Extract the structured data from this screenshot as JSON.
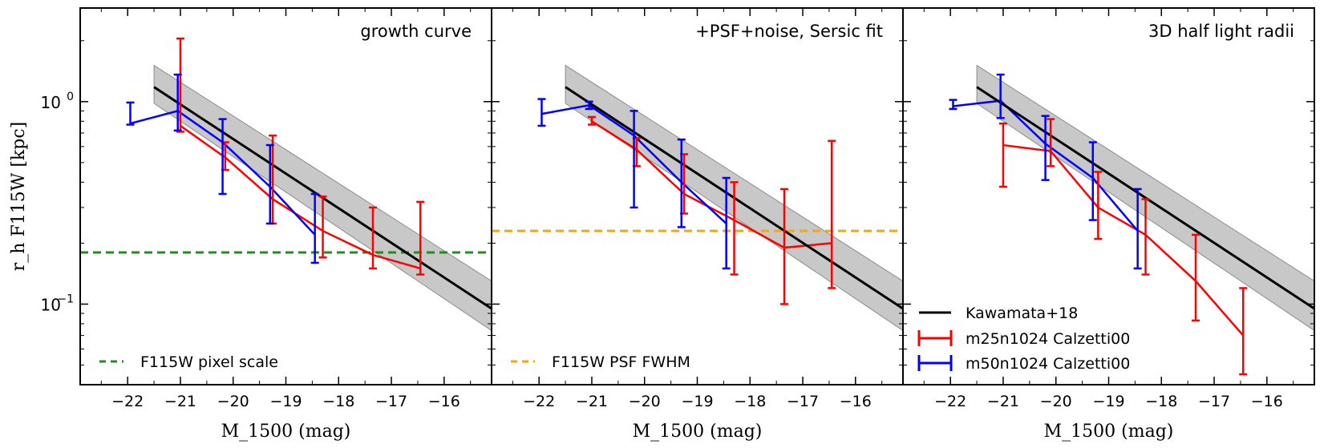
{
  "chart_data": [
    {
      "type": "line",
      "panel_title": "growth curve",
      "xlabel": "M_1500 (mag)",
      "ylabel": "r_h F115W [kpc]",
      "xlim": [
        -22.9,
        -15.1
      ],
      "ylim": [
        0.04,
        2.9
      ],
      "yscale": "log",
      "xticks": [
        -22,
        -21,
        -20,
        -19,
        -18,
        -17,
        -16
      ],
      "yticks": [
        {
          "value": 1.0,
          "label_base": "10",
          "label_exp": "0"
        },
        {
          "value": 0.1,
          "label_base": "10",
          "label_exp": "-1"
        }
      ],
      "kawamata": {
        "name": "Kawamata+18",
        "color": "#000000",
        "x": [
          -21.5,
          -15.1
        ],
        "y": [
          1.18,
          0.095
        ],
        "band_lower": [
          0.98,
          0.074
        ],
        "band_upper": [
          1.51,
          0.13
        ]
      },
      "series": [
        {
          "name": "m25n1024 Calzetti00",
          "color": "#ff0000",
          "x": [
            -21.0,
            -20.15,
            -19.25,
            -18.3,
            -17.35,
            -16.45
          ],
          "y": [
            0.76,
            0.53,
            0.33,
            0.23,
            0.175,
            0.15
          ],
          "err_low": [
            0.71,
            0.46,
            0.25,
            0.17,
            0.15,
            0.14
          ],
          "err_high": [
            2.05,
            0.63,
            0.68,
            0.34,
            0.3,
            0.32
          ]
        },
        {
          "name": "m50n1024 Calzetti00",
          "color": "#0000ff",
          "x": [
            -21.95,
            -21.05,
            -20.2,
            -19.3,
            -18.45
          ],
          "y": [
            0.78,
            0.9,
            0.63,
            0.38,
            0.22
          ],
          "err_low": [
            0.77,
            0.72,
            0.35,
            0.25,
            0.16
          ],
          "err_high": [
            0.99,
            1.36,
            0.82,
            0.61,
            0.35
          ]
        }
      ],
      "reference_line": {
        "label": "F115W pixel scale",
        "y": 0.18,
        "color": "#228b22",
        "style": "dashed"
      }
    },
    {
      "type": "line",
      "panel_title": "+PSF+noise, Sersic fit",
      "xlabel": "M_1500 (mag)",
      "xlim": [
        -22.9,
        -15.1
      ],
      "ylim": [
        0.04,
        2.9
      ],
      "yscale": "log",
      "xticks": [
        -22,
        -21,
        -20,
        -19,
        -18,
        -17,
        -16
      ],
      "kawamata": {
        "name": "Kawamata+18",
        "color": "#000000",
        "x": [
          -21.5,
          -15.1
        ],
        "y": [
          1.18,
          0.095
        ],
        "band_lower": [
          0.98,
          0.074
        ],
        "band_upper": [
          1.51,
          0.13
        ]
      },
      "series": [
        {
          "name": "m25n1024 Calzetti00",
          "color": "#ff0000",
          "x": [
            -21.0,
            -20.15,
            -19.25,
            -18.3,
            -17.35,
            -16.45
          ],
          "y": [
            0.8,
            0.58,
            0.35,
            0.26,
            0.19,
            0.2
          ],
          "err_low": [
            0.77,
            0.48,
            0.28,
            0.14,
            0.1,
            0.12
          ],
          "err_high": [
            0.84,
            0.66,
            0.55,
            0.4,
            0.37,
            0.64
          ]
        },
        {
          "name": "m50n1024 Calzetti00",
          "color": "#0000ff",
          "x": [
            -21.95,
            -21.05,
            -20.2,
            -19.3,
            -18.45
          ],
          "y": [
            0.87,
            0.96,
            0.68,
            0.4,
            0.25
          ],
          "err_low": [
            0.76,
            0.92,
            0.3,
            0.24,
            0.15
          ],
          "err_high": [
            1.03,
            1.0,
            0.9,
            0.65,
            0.42
          ]
        }
      ],
      "reference_line": {
        "label": "F115W PSF FWHM",
        "y": 0.23,
        "color": "#ffa500",
        "style": "dashed"
      }
    },
    {
      "type": "line",
      "panel_title": "3D half light radii",
      "xlabel": "M_1500 (mag)",
      "xlim": [
        -22.9,
        -15.1
      ],
      "ylim": [
        0.04,
        2.9
      ],
      "yscale": "log",
      "xticks": [
        -22,
        -21,
        -20,
        -19,
        -18,
        -17,
        -16
      ],
      "kawamata": {
        "name": "Kawamata+18",
        "color": "#000000",
        "x": [
          -21.5,
          -15.1
        ],
        "y": [
          1.18,
          0.095
        ],
        "band_lower": [
          0.98,
          0.074
        ],
        "band_upper": [
          1.51,
          0.13
        ]
      },
      "series": [
        {
          "name": "m25n1024 Calzetti00",
          "color": "#ff0000",
          "x": [
            -21.0,
            -20.1,
            -19.2,
            -18.3,
            -17.35,
            -16.45
          ],
          "y": [
            0.61,
            0.57,
            0.3,
            0.22,
            0.13,
            0.07
          ],
          "err_low": [
            0.38,
            0.48,
            0.21,
            0.14,
            0.083,
            0.045
          ],
          "err_high": [
            0.78,
            0.82,
            0.45,
            0.33,
            0.22,
            0.12
          ]
        },
        {
          "name": "m50n1024 Calzetti00",
          "color": "#0000ff",
          "x": [
            -21.95,
            -21.05,
            -20.2,
            -19.3,
            -18.45
          ],
          "y": [
            0.95,
            1.01,
            0.62,
            0.42,
            0.23
          ],
          "err_low": [
            0.92,
            0.83,
            0.41,
            0.26,
            0.15
          ],
          "err_high": [
            1.02,
            1.36,
            0.85,
            0.63,
            0.37
          ]
        }
      ],
      "legend": {
        "placement": "lower-left",
        "entries": [
          "Kawamata+18",
          "m25n1024 Calzetti00",
          "m50n1024 Calzetti00"
        ]
      }
    }
  ]
}
